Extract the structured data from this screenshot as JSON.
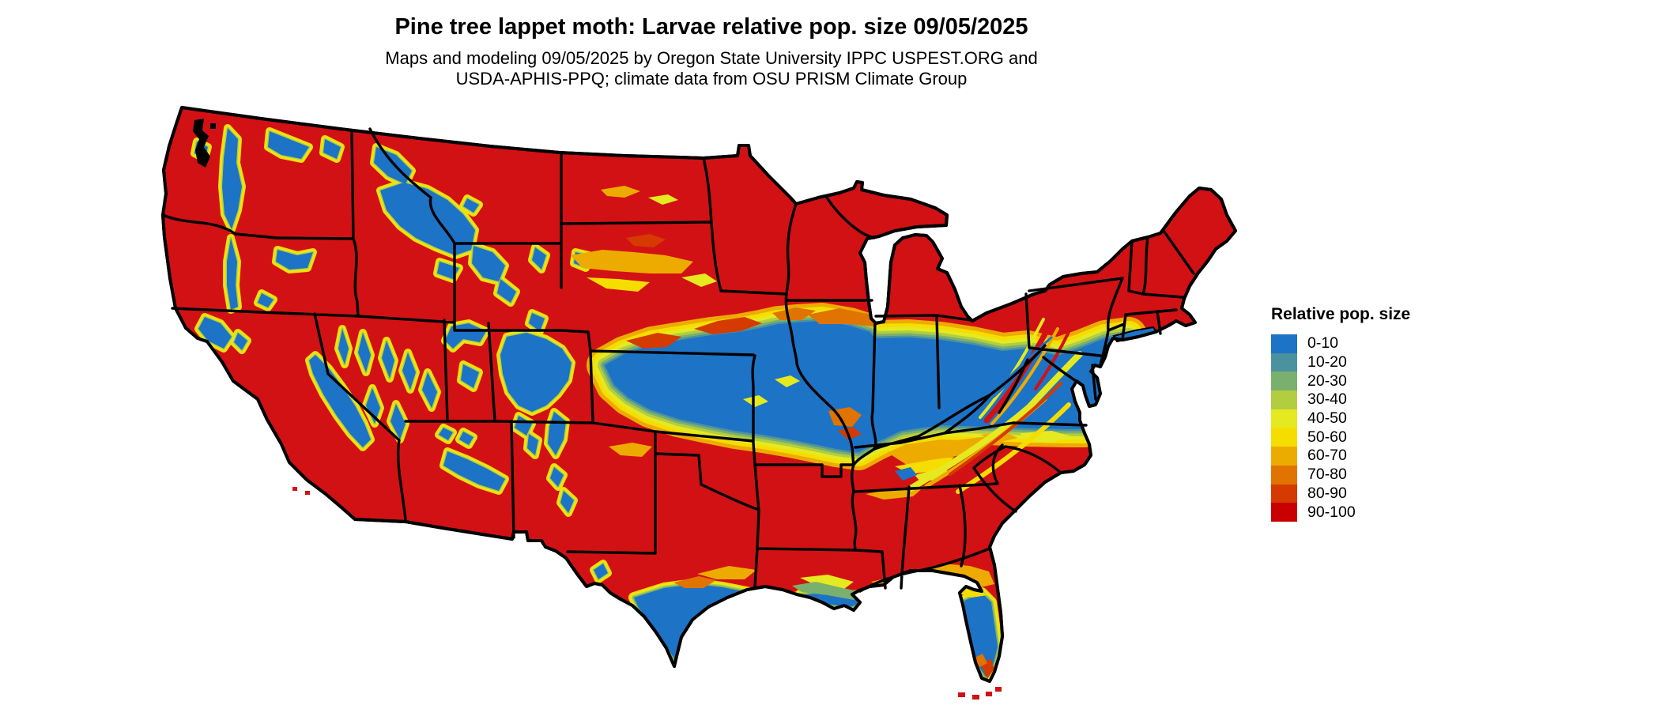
{
  "header": {
    "title": "Pine tree lappet moth: Larvae relative pop. size 09/05/2025",
    "subtitle_line1": "Maps and modeling 09/05/2025 by Oregon State University IPPC USPEST.ORG and",
    "subtitle_line2": "USDA-APHIS-PPQ; climate data from OSU PRISM Climate Group"
  },
  "legend": {
    "title": "Relative pop. size",
    "items": [
      {
        "label": "0-10",
        "color": "#1d73c6"
      },
      {
        "label": "10-20",
        "color": "#4b929f"
      },
      {
        "label": "20-30",
        "color": "#7ab06e"
      },
      {
        "label": "30-40",
        "color": "#b3cd41"
      },
      {
        "label": "40-50",
        "color": "#e5e920"
      },
      {
        "label": "50-60",
        "color": "#f6dd00"
      },
      {
        "label": "60-70",
        "color": "#edab00"
      },
      {
        "label": "70-80",
        "color": "#e17300"
      },
      {
        "label": "80-90",
        "color": "#d53a00"
      },
      {
        "label": "90-100",
        "color": "#ca0000"
      }
    ]
  },
  "map": {
    "base_color": "#d21115",
    "outline_color": "#000000",
    "water_color": "#ffffff"
  }
}
